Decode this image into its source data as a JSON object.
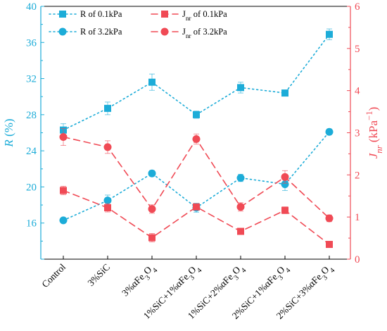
{
  "chart_data": {
    "type": "line",
    "categories": [
      "Control",
      "3%SiC",
      "3%αFe₃O₄",
      "1%SiC+1%αFe₃O₄",
      "1%SiC+2%αFe₃O₄",
      "2%SiC+1%αFe₃O₄",
      "2%SiC+3%αFe₃O₄"
    ],
    "categories_rich": [
      [
        {
          "t": "Control"
        }
      ],
      [
        {
          "t": "3%SiC"
        }
      ],
      [
        {
          "t": "3%αFe"
        },
        {
          "t": "3",
          "sub": true
        },
        {
          "t": "O"
        },
        {
          "t": "4",
          "sub": true
        }
      ],
      [
        {
          "t": "1%SiC+1%αFe"
        },
        {
          "t": "3",
          "sub": true
        },
        {
          "t": "O"
        },
        {
          "t": "4",
          "sub": true
        }
      ],
      [
        {
          "t": "1%SiC+2%αFe"
        },
        {
          "t": "3",
          "sub": true
        },
        {
          "t": "O"
        },
        {
          "t": "4",
          "sub": true
        }
      ],
      [
        {
          "t": "2%SiC+1%αFe"
        },
        {
          "t": "3",
          "sub": true
        },
        {
          "t": "O"
        },
        {
          "t": "4",
          "sub": true
        }
      ],
      [
        {
          "t": "2%SiC+3%αFe"
        },
        {
          "t": "3",
          "sub": true
        },
        {
          "t": "O"
        },
        {
          "t": "4",
          "sub": true
        }
      ]
    ],
    "left_axis": {
      "label": "R",
      "unit": " (%)",
      "ylim": [
        12,
        40
      ],
      "ticks": [
        12,
        16,
        20,
        24,
        28,
        32,
        36,
        40
      ],
      "color": "#1cacd8"
    },
    "right_axis": {
      "label_prefix": "J",
      "label_sub": "nr",
      "unit_prefix": " (kPa",
      "unit_sup": "−1",
      "unit_suffix": ")",
      "ylim": [
        0,
        6
      ],
      "ticks": [
        0,
        1,
        2,
        3,
        4,
        5,
        6
      ],
      "color": "#f04a55"
    },
    "series": [
      {
        "name": "R of 0.1kPa",
        "name_parts": [
          {
            "t": "R of 0.1kPa"
          }
        ],
        "axis": "left",
        "marker": "square",
        "line": "dot",
        "color": "#1cacd8",
        "values": [
          26.3,
          28.7,
          31.6,
          28.0,
          31.0,
          30.4,
          36.9
        ],
        "err": [
          0.7,
          0.7,
          0.9,
          0.4,
          0.6,
          0.2,
          0.6
        ]
      },
      {
        "name": "R of 3.2kPa",
        "name_parts": [
          {
            "t": "R of 3.2kPa"
          }
        ],
        "axis": "left",
        "marker": "circle",
        "line": "dot",
        "color": "#1cacd8",
        "values": [
          16.3,
          18.5,
          21.5,
          17.7,
          21.0,
          20.3,
          26.1
        ],
        "err": [
          0.2,
          0.6,
          0.3,
          0.5,
          0.4,
          0.7,
          0.3
        ]
      },
      {
        "name": "Jnr of 0.1kPa",
        "name_parts": [
          {
            "t": "J"
          },
          {
            "t": "nr",
            "sub": true
          },
          {
            "t": " of 0.1kPa"
          }
        ],
        "axis": "right",
        "marker": "square",
        "line": "dash",
        "color": "#f04a55",
        "values": [
          1.63,
          1.22,
          0.51,
          1.24,
          0.66,
          1.16,
          0.35
        ],
        "err": [
          0.1,
          0.1,
          0.1,
          0.06,
          0.04,
          0.08,
          0.03
        ]
      },
      {
        "name": "Jnr of 3.2kPa",
        "name_parts": [
          {
            "t": "J"
          },
          {
            "t": "nr",
            "sub": true
          },
          {
            "t": " of 3.2kPa"
          }
        ],
        "axis": "right",
        "marker": "circle",
        "line": "dash",
        "color": "#f04a55",
        "values": [
          2.9,
          2.66,
          1.19,
          2.85,
          1.24,
          1.95,
          0.97
        ],
        "err": [
          0.2,
          0.15,
          0.1,
          0.12,
          0.1,
          0.15,
          0.08
        ]
      }
    ],
    "legend": {
      "placement": "top-left",
      "columns": 2
    }
  }
}
